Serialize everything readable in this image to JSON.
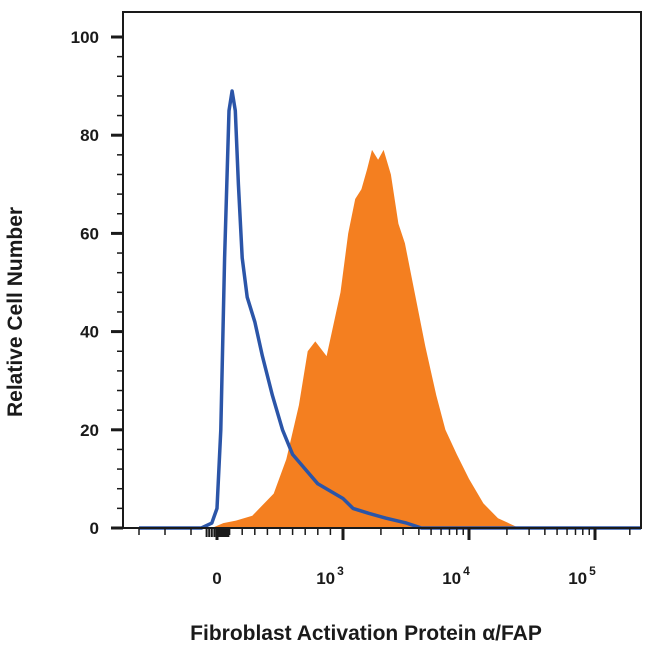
{
  "chart_data": {
    "type": "area",
    "xlabel": "Fibroblast Activation Protein α/FAP",
    "ylabel": "Relative Cell Number",
    "x_scale": "biexponential",
    "x_ticks": [
      {
        "value": 0,
        "base": "0",
        "exp": ""
      },
      {
        "value": 1000,
        "base": "10",
        "exp": "3"
      },
      {
        "value": 10000,
        "base": "10",
        "exp": "4"
      },
      {
        "value": 100000,
        "base": "10",
        "exp": "5"
      }
    ],
    "y_ticks": [
      0,
      20,
      40,
      60,
      80,
      100
    ],
    "ylim": [
      0,
      100
    ],
    "grid": false,
    "legend": "none",
    "series": [
      {
        "style": "outline",
        "color": "#2b55a8",
        "points": [
          [
            -300,
            0
          ],
          [
            -60,
            0
          ],
          [
            -20,
            1
          ],
          [
            0,
            4
          ],
          [
            30,
            20
          ],
          [
            60,
            55
          ],
          [
            95,
            85
          ],
          [
            120,
            89
          ],
          [
            145,
            85
          ],
          [
            170,
            70
          ],
          [
            200,
            55
          ],
          [
            240,
            47
          ],
          [
            300,
            42
          ],
          [
            360,
            35
          ],
          [
            440,
            27
          ],
          [
            520,
            20
          ],
          [
            600,
            15
          ],
          [
            700,
            12
          ],
          [
            800,
            9
          ],
          [
            1000,
            6
          ],
          [
            1200,
            4
          ],
          [
            1600,
            3
          ],
          [
            2200,
            2
          ],
          [
            3200,
            1
          ],
          [
            4200,
            0
          ],
          [
            250000,
            0
          ]
        ]
      },
      {
        "style": "filled",
        "color": "#f47f20",
        "points": [
          [
            -300,
            0
          ],
          [
            -20,
            0
          ],
          [
            50,
            1
          ],
          [
            150,
            1.5
          ],
          [
            280,
            2.5
          ],
          [
            450,
            7
          ],
          [
            550,
            14
          ],
          [
            650,
            25
          ],
          [
            720,
            36
          ],
          [
            780,
            38
          ],
          [
            870,
            35
          ],
          [
            980,
            48
          ],
          [
            1100,
            60
          ],
          [
            1250,
            67
          ],
          [
            1400,
            69
          ],
          [
            1550,
            73
          ],
          [
            1700,
            77
          ],
          [
            1900,
            75
          ],
          [
            2100,
            77
          ],
          [
            2400,
            72
          ],
          [
            2750,
            62
          ],
          [
            3100,
            58
          ],
          [
            3700,
            48
          ],
          [
            4500,
            37
          ],
          [
            5500,
            27
          ],
          [
            6500,
            20
          ],
          [
            8000,
            15
          ],
          [
            10000,
            10
          ],
          [
            13000,
            5
          ],
          [
            17000,
            2
          ],
          [
            25000,
            0
          ],
          [
            250000,
            0
          ]
        ]
      }
    ]
  }
}
